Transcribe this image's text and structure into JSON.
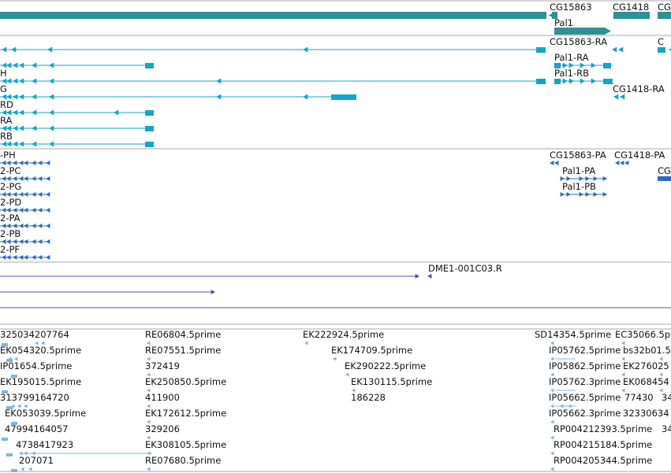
{
  "colors": {
    "gene": "#2e9196",
    "transcript": "#16a5c4",
    "protein": "#2b6ac4",
    "alignment": "#5b4fa0",
    "est": "#7fb5dc",
    "track_border": "#a8a8a8"
  },
  "gene_track": {
    "labels": [
      "CG15863",
      "CG1418",
      "CG",
      "Pal1"
    ]
  },
  "transcript_track": {
    "labels": [
      "CG15863-RA",
      "C",
      "H",
      "Pal1-RA",
      "Pal1-RB",
      "G",
      "CG1418-RA",
      "RD",
      "RA",
      "RB"
    ]
  },
  "protein_track": {
    "labels": [
      "-PH",
      "CG15863-PA",
      "CG1418-PA",
      "2-PC",
      "Pal1-PA",
      "CG",
      "2-PG",
      "Pal1-PB",
      "2-PD",
      "2-PA",
      "2-PB",
      "2-PF"
    ]
  },
  "alignment_track": {
    "labels": [
      "DME1-001C03.R"
    ]
  },
  "est_track": {
    "labels": [
      "325034207764",
      "RE06804.5prime",
      "EK222924.5prime",
      "SD14354.5prime",
      "EC35066.5p",
      "EK054320.5prime",
      "RE07551.5prime",
      "EK174709.5prime",
      "IP05762.5prime",
      "bs32b01.5",
      "IP01654.5prime",
      "372419",
      "EK290222.5prime",
      "IP05862.5prime",
      "EK276025",
      "EK195015.5prime",
      "EK250850.5prime",
      "EK130115.5prime",
      "IP05762.3prime",
      "EK068454",
      "313799164720",
      "411900",
      "186228",
      "IP05662.5prime",
      "77430",
      "34",
      "EK053039.5prime",
      "EK172612.5prime",
      "IP05662.3prime",
      "32330634",
      "4799416405 7",
      "329206",
      "RP004212393.5prime",
      "34",
      "4738417923",
      "EK308105.5prime",
      "RP004215184.5prime",
      "207071",
      "RE07680.5prime",
      "RP004205344.5prime"
    ]
  }
}
